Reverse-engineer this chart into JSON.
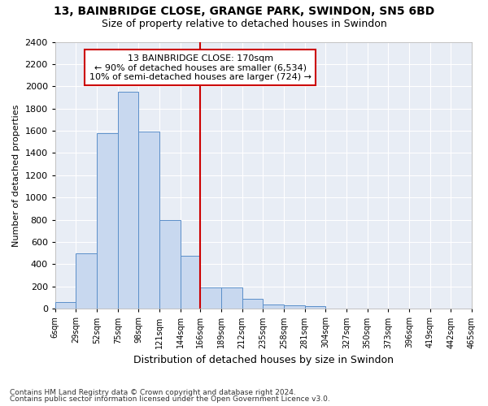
{
  "title1": "13, BAINBRIDGE CLOSE, GRANGE PARK, SWINDON, SN5 6BD",
  "title2": "Size of property relative to detached houses in Swindon",
  "xlabel": "Distribution of detached houses by size in Swindon",
  "ylabel": "Number of detached properties",
  "bin_labels": [
    "6sqm",
    "29sqm",
    "52sqm",
    "75sqm",
    "98sqm",
    "121sqm",
    "144sqm",
    "166sqm",
    "189sqm",
    "212sqm",
    "235sqm",
    "258sqm",
    "281sqm",
    "304sqm",
    "327sqm",
    "350sqm",
    "373sqm",
    "396sqm",
    "419sqm",
    "442sqm",
    "465sqm"
  ],
  "bin_edges": [
    6,
    29,
    52,
    75,
    98,
    121,
    144,
    166,
    189,
    212,
    235,
    258,
    281,
    304,
    327,
    350,
    373,
    396,
    419,
    442,
    465
  ],
  "bar_heights": [
    60,
    500,
    1580,
    1950,
    1590,
    800,
    480,
    195,
    195,
    90,
    35,
    30,
    22,
    0,
    0,
    0,
    0,
    0,
    0,
    0
  ],
  "bar_color": "#c8d8ef",
  "bar_edge_color": "#5b8fc9",
  "vline_x": 166,
  "vline_color": "#cc0000",
  "annotation_line1": "13 BAINBRIDGE CLOSE: 170sqm",
  "annotation_line2": "← 90% of detached houses are smaller (6,534)",
  "annotation_line3": "10% of semi-detached houses are larger (724) →",
  "annotation_box_color": "#ffffff",
  "annotation_box_edge_color": "#cc0000",
  "ylim": [
    0,
    2400
  ],
  "yticks": [
    0,
    200,
    400,
    600,
    800,
    1000,
    1200,
    1400,
    1600,
    1800,
    2000,
    2200,
    2400
  ],
  "footnote1": "Contains HM Land Registry data © Crown copyright and database right 2024.",
  "footnote2": "Contains public sector information licensed under the Open Government Licence v3.0.",
  "fig_bg_color": "#ffffff",
  "plot_bg_color": "#e8edf5"
}
